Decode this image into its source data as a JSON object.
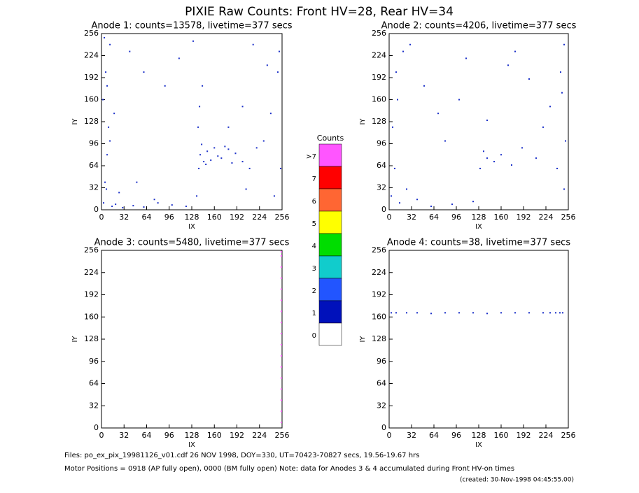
{
  "title": "PIXIE Raw Counts:  Front HV=28, Rear HV=34",
  "chart_data": [
    {
      "type": "scatter",
      "title": "Anode 1: counts=13578, livetime=377 secs",
      "x_label": "IX",
      "y_label": "IY",
      "xlim": [
        0,
        256
      ],
      "ylim": [
        0,
        256
      ],
      "xticks": [
        0,
        32,
        64,
        96,
        128,
        160,
        192,
        224,
        256
      ],
      "yticks": [
        0,
        32,
        64,
        96,
        128,
        160,
        192,
        224,
        256
      ],
      "series": [
        {
          "color": "#1a2fc8",
          "x": [
            3,
            5,
            8,
            10,
            2,
            6,
            12,
            4,
            7,
            15,
            20,
            30,
            45,
            60,
            80,
            100,
            120,
            135,
            138,
            140,
            142,
            145,
            150,
            160,
            170,
            180,
            190,
            200,
            205,
            210,
            220,
            230,
            240,
            250,
            252,
            254,
            137,
            139,
            143,
            148,
            155,
            165,
            175,
            185,
            60,
            90,
            110,
            200,
            215,
            235,
            25,
            50,
            75,
            130,
            180,
            245,
            8,
            12,
            18,
            40
          ],
          "y": [
            10,
            40,
            80,
            120,
            160,
            200,
            240,
            250,
            30,
            5,
            8,
            3,
            6,
            4,
            10,
            7,
            5,
            20,
            60,
            80,
            95,
            70,
            85,
            90,
            75,
            88,
            82,
            70,
            30,
            60,
            90,
            100,
            140,
            200,
            230,
            60,
            120,
            150,
            180,
            66,
            72,
            78,
            92,
            68,
            200,
            180,
            220,
            150,
            240,
            210,
            25,
            40,
            15,
            245,
            120,
            20,
            180,
            100,
            140,
            230
          ]
        }
      ]
    },
    {
      "type": "scatter",
      "title": "Anode 2: counts=4206, livetime=377 secs",
      "x_label": "IX",
      "y_label": "IY",
      "xlim": [
        0,
        256
      ],
      "ylim": [
        0,
        256
      ],
      "xticks": [
        0,
        32,
        64,
        96,
        128,
        160,
        192,
        224,
        256
      ],
      "yticks": [
        0,
        32,
        64,
        96,
        128,
        160,
        192,
        224,
        256
      ],
      "series": [
        {
          "color": "#1a2fc8",
          "x": [
            3,
            8,
            15,
            25,
            40,
            60,
            90,
            120,
            130,
            135,
            140,
            150,
            160,
            175,
            190,
            210,
            230,
            245,
            250,
            252,
            10,
            20,
            50,
            70,
            100,
            110,
            170,
            200,
            220,
            240,
            5,
            12,
            30,
            80,
            140,
            180,
            250,
            247
          ],
          "y": [
            20,
            60,
            10,
            30,
            15,
            5,
            8,
            12,
            60,
            85,
            75,
            70,
            80,
            65,
            90,
            75,
            150,
            200,
            240,
            100,
            200,
            230,
            180,
            140,
            160,
            220,
            210,
            190,
            120,
            60,
            120,
            160,
            240,
            100,
            130,
            230,
            30,
            170
          ]
        }
      ]
    },
    {
      "type": "scatter",
      "title": "Anode 3: counts=5480, livetime=377 secs",
      "x_label": "IX",
      "y_label": "IY",
      "xlim": [
        0,
        256
      ],
      "ylim": [
        0,
        256
      ],
      "xticks": [
        0,
        32,
        64,
        96,
        128,
        160,
        192,
        224,
        256
      ],
      "yticks": [
        0,
        32,
        64,
        96,
        128,
        160,
        192,
        224,
        256
      ],
      "series": [
        {
          "color": "#ff55ff",
          "x": [
            255,
            255,
            255,
            255,
            255,
            255,
            255,
            255,
            255,
            255,
            255,
            255,
            255,
            255,
            255,
            255,
            255
          ],
          "y": [
            8,
            24,
            40,
            56,
            72,
            88,
            104,
            120,
            136,
            152,
            168,
            184,
            200,
            216,
            232,
            248,
            254
          ]
        }
      ]
    },
    {
      "type": "scatter",
      "title": "Anode 4: counts=38, livetime=377 secs",
      "x_label": "IX",
      "y_label": "IY",
      "xlim": [
        0,
        256
      ],
      "ylim": [
        0,
        256
      ],
      "xticks": [
        0,
        32,
        64,
        96,
        128,
        160,
        192,
        224,
        256
      ],
      "yticks": [
        0,
        32,
        64,
        96,
        128,
        160,
        192,
        224,
        256
      ],
      "series": [
        {
          "color": "#1a2fc8",
          "x": [
            3,
            10,
            25,
            40,
            60,
            80,
            100,
            120,
            140,
            160,
            180,
            200,
            220,
            230,
            238,
            244,
            248
          ],
          "y": [
            166,
            166,
            166,
            166,
            165,
            166,
            166,
            166,
            165,
            166,
            166,
            166,
            166,
            166,
            166,
            166,
            166
          ]
        }
      ]
    }
  ],
  "colorbar": {
    "title": "Counts",
    "levels": [
      {
        "label": ">7",
        "color": "#ff55ff"
      },
      {
        "label": "7",
        "color": "#ff0000"
      },
      {
        "label": "6",
        "color": "#ff6633"
      },
      {
        "label": "5",
        "color": "#ffff00"
      },
      {
        "label": "4",
        "color": "#00dd00"
      },
      {
        "label": "3",
        "color": "#11cccc"
      },
      {
        "label": "2",
        "color": "#2255ff"
      },
      {
        "label": "1",
        "color": "#0011bb"
      },
      {
        "label": "0",
        "color": "#ffffff"
      }
    ]
  },
  "footer": [
    "Files: po_ex_pix_19981126_v01.cdf    26 NOV 1998, DOY=330, UT=70423-70827 secs, 19.56-19.67 hrs",
    "Motor Positions = 0918 (AP fully open), 0000 (BM fully open)    Note: data for Anodes 3 & 4 accumulated during Front HV-on times",
    "(created: 30-Nov-1998 04:45:55.00)"
  ]
}
